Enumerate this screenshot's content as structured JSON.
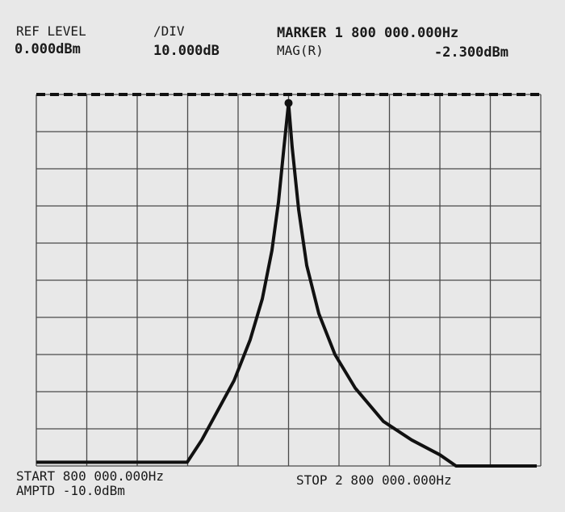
{
  "chart_data": {
    "type": "line",
    "annotations": {
      "ref_level_label": "REF LEVEL",
      "ref_level_value": "0.000dBm",
      "div_label": "/DIV",
      "div_value": "10.000dB",
      "marker_label": "MARKER 1 800 000.000Hz",
      "marker_mode": "MAG(R)",
      "marker_value": "-2.300dBm",
      "start": "START 800 000.000Hz",
      "stop": "STOP 2 800 000.000Hz",
      "amptd": "AMPTD -10.0dBm"
    },
    "xlim": [
      800,
      2800
    ],
    "ylim": [
      -100,
      0
    ],
    "xgrid": [
      800,
      1000,
      1200,
      1400,
      1600,
      1800,
      2000,
      2200,
      2400,
      2600,
      2800
    ],
    "ygrid": [
      -100,
      -90,
      -80,
      -70,
      -60,
      -50,
      -40,
      -30,
      -20,
      -10,
      0
    ],
    "ref_level": 0,
    "marker": {
      "x": 1800,
      "y": -2.3
    },
    "series": [
      {
        "color": "#111111",
        "x": [
          800,
          1100,
          1398,
          1456,
          1520,
          1584,
          1648,
          1696,
          1734,
          1760,
          1782,
          1800,
          1814,
          1840,
          1872,
          1920,
          1984,
          2064,
          2176,
          2288,
          2400,
          2464,
          2784
        ],
        "values": [
          -99,
          -99,
          -99,
          -93,
          -85,
          -77,
          -66,
          -55,
          -42,
          -29,
          -14,
          -2.3,
          -14,
          -31,
          -46,
          -59,
          -70,
          -79,
          -88,
          -93,
          -97,
          -100,
          -100
        ]
      }
    ]
  }
}
